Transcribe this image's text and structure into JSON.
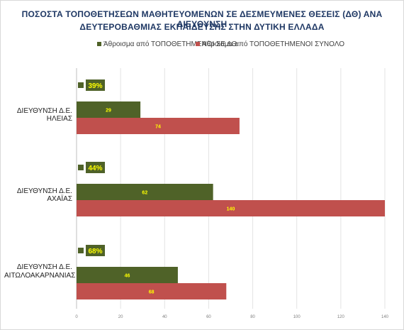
{
  "chart_data": {
    "type": "bar",
    "orientation": "horizontal",
    "title": "ΠΟΣΟΣΤΑ ΤΟΠΟΘΕΤΗΣΕΩΝ ΜΑΘΗΤΕΥΟΜΕΝΩΝ ΣΕ ΔΕΣΜΕΥΜΕΝΕΣ ΘΕΣΕΙΣ (ΔΘ) ΑΝΑ ΔΙΕΥΘΥΝΣΗ ΔΕΥΤΕΡΟΒΑΘΜΙΑΣ ΕΚΠΑΙΔΕΥΣΗΣ ΣΤΗΝ ΔΥΤΙΚΗ ΕΛΛΑΔΑ",
    "title_lines": [
      "ΠΟΣΟΣΤΑ ΤΟΠΟΘΕΤΗΣΕΩΝ ΜΑΘΗΤΕΥΟΜΕΝΩΝ ΣΕ ΔΕΣΜΕΥΜΕΝΕΣ ΘΕΣΕΙΣ (ΔΘ) ΑΝΑ ΔΙΕΥΘΥΝΣΗ",
      "ΔΕΥΤΕΡΟΒΑΘΜΙΑΣ ΕΚΠΑΙΔΕΥΣΗΣ ΣΤΗΝ ΔΥΤΙΚΗ ΕΛΛΑΔΑ"
    ],
    "categories": [
      "ΔΙΕΥΘΥΝΣΗ Δ.Ε. ΗΛΕΙΑΣ",
      "ΔΙΕΥΘΥΝΣΗ Δ.Ε. ΑΧΑΪΑΣ",
      "ΔΙΕΥΘΥΝΣΗ Δ.Ε. ΑΙΤΩΛΟΑΚΑΡΝΑΝΙΑΣ"
    ],
    "category_label_lines": [
      [
        "ΔΙΕΥΘΥΝΣΗ Δ.Ε. ΗΛΕΙΑΣ"
      ],
      [
        "ΔΙΕΥΘΥΝΣΗ Δ.Ε. ΑΧΑΪΑΣ"
      ],
      [
        "ΔΙΕΥΘΥΝΣΗ Δ.Ε.",
        "ΑΙΤΩΛΟΑΚΑΡΝΑΝΙΑΣ"
      ]
    ],
    "percentages": [
      "39%",
      "44%",
      "68%"
    ],
    "series": [
      {
        "name": "Άθροισμα από ΤΟΠΟΘΕΤΗΜΕΝΟΙ ΣΕ ΔΘ",
        "values": [
          29,
          62,
          46
        ],
        "color": "#4f6228"
      },
      {
        "name": "Άθροισμα από ΤΟΠΟΘΕΤΗΜΕΝΟΙ ΣΥΝΟΛΟ",
        "values": [
          74,
          140,
          68
        ],
        "color": "#c0504d"
      }
    ],
    "xlim": [
      0,
      140
    ],
    "xticks": [
      0,
      20,
      40,
      60,
      80,
      100,
      120,
      140
    ],
    "grid": true,
    "legend_position": "top",
    "data_label_color": "#ffff00"
  }
}
